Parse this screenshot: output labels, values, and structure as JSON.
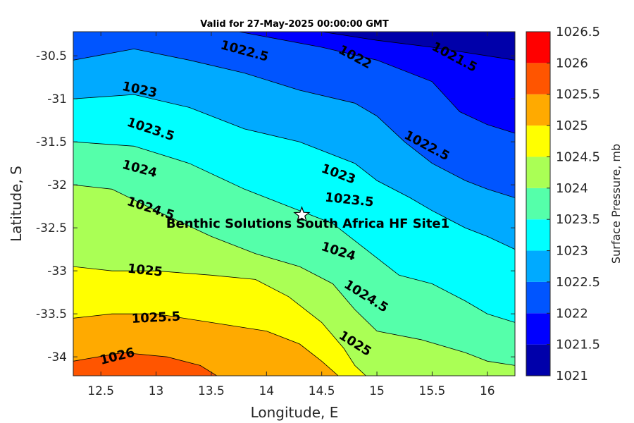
{
  "title": "Valid for 27-May-2025 00:00:00 GMT",
  "chart_data": {
    "type": "contour",
    "xlabel": "Longitude, E",
    "ylabel": "Latitude, S",
    "xlim": [
      12.25,
      16.25
    ],
    "ylim": [
      -34.22,
      -30.22
    ],
    "x_ticks": [
      {
        "value": 12.5,
        "label": "12.5"
      },
      {
        "value": 13,
        "label": "13"
      },
      {
        "value": 13.5,
        "label": "13.5"
      },
      {
        "value": 14,
        "label": "14"
      },
      {
        "value": 14.5,
        "label": "14.5"
      },
      {
        "value": 15,
        "label": "15"
      },
      {
        "value": 15.5,
        "label": "15.5"
      },
      {
        "value": 16,
        "label": "16"
      }
    ],
    "y_ticks": [
      {
        "value": -30.5,
        "label": "-30.5"
      },
      {
        "value": -31,
        "label": "-31"
      },
      {
        "value": -31.5,
        "label": "-31.5"
      },
      {
        "value": -32,
        "label": "-32"
      },
      {
        "value": -32.5,
        "label": "-32.5"
      },
      {
        "value": -33,
        "label": "-33"
      },
      {
        "value": -33.5,
        "label": "-33.5"
      },
      {
        "value": -34,
        "label": "-34"
      }
    ],
    "colorbar": {
      "title": "Surface Pressure, mb",
      "range": [
        1021,
        1026.5
      ],
      "levels": [
        {
          "value": 1021,
          "label": "1021",
          "color": "#0000aa"
        },
        {
          "value": 1021.5,
          "label": "1021.5",
          "color": "#0000ff"
        },
        {
          "value": 1022,
          "label": "1022",
          "color": "#0055ff"
        },
        {
          "value": 1022.5,
          "label": "1022.5",
          "color": "#00aaff"
        },
        {
          "value": 1023,
          "label": "1023",
          "color": "#00ffff"
        },
        {
          "value": 1023.5,
          "label": "1023.5",
          "color": "#55ffaa"
        },
        {
          "value": 1024,
          "label": "1024",
          "color": "#aaff55"
        },
        {
          "value": 1024.5,
          "label": "1024.5",
          "color": "#ffff00"
        },
        {
          "value": 1025,
          "label": "1025",
          "color": "#ffaa00"
        },
        {
          "value": 1025.5,
          "label": "1025.5",
          "color": "#ff5500"
        },
        {
          "value": 1026,
          "label": "1026",
          "color": "#ff0000"
        },
        {
          "value": 1026.5,
          "label": "1026.5",
          "color": "#aa0000"
        }
      ]
    },
    "isobars": [
      {
        "value": 1021.5,
        "points": [
          [
            14.5,
            -30.22
          ],
          [
            15.0,
            -30.32
          ],
          [
            15.5,
            -30.4
          ],
          [
            16.25,
            -30.55
          ]
        ]
      },
      {
        "value": 1022,
        "points": [
          [
            13.75,
            -30.22
          ],
          [
            14.5,
            -30.4
          ],
          [
            15.0,
            -30.55
          ],
          [
            15.5,
            -30.8
          ],
          [
            15.75,
            -31.15
          ],
          [
            16.0,
            -31.3
          ],
          [
            16.25,
            -31.4
          ]
        ]
      },
      {
        "value": 1022.5,
        "points": [
          [
            12.25,
            -30.55
          ],
          [
            12.8,
            -30.42
          ],
          [
            13.3,
            -30.55
          ],
          [
            13.8,
            -30.7
          ],
          [
            14.3,
            -30.9
          ],
          [
            14.8,
            -31.05
          ],
          [
            15.0,
            -31.2
          ],
          [
            15.25,
            -31.5
          ],
          [
            15.5,
            -31.75
          ],
          [
            15.8,
            -31.95
          ],
          [
            16.0,
            -32.05
          ],
          [
            16.25,
            -32.15
          ]
        ]
      },
      {
        "value": 1023,
        "points": [
          [
            12.25,
            -31.0
          ],
          [
            12.8,
            -30.95
          ],
          [
            13.3,
            -31.1
          ],
          [
            13.8,
            -31.35
          ],
          [
            14.3,
            -31.5
          ],
          [
            14.8,
            -31.75
          ],
          [
            15.0,
            -31.95
          ],
          [
            15.3,
            -32.15
          ],
          [
            15.5,
            -32.3
          ],
          [
            15.8,
            -32.5
          ],
          [
            16.0,
            -32.6
          ],
          [
            16.25,
            -32.75
          ]
        ]
      },
      {
        "value": 1023.5,
        "points": [
          [
            12.25,
            -31.5
          ],
          [
            12.8,
            -31.55
          ],
          [
            13.3,
            -31.75
          ],
          [
            13.8,
            -32.05
          ],
          [
            14.2,
            -32.25
          ],
          [
            14.6,
            -32.45
          ],
          [
            14.9,
            -32.75
          ],
          [
            15.2,
            -33.05
          ],
          [
            15.5,
            -33.15
          ],
          [
            15.8,
            -33.35
          ],
          [
            16.0,
            -33.5
          ],
          [
            16.25,
            -33.6
          ]
        ]
      },
      {
        "value": 1024,
        "points": [
          [
            12.25,
            -32.0
          ],
          [
            12.6,
            -32.05
          ],
          [
            13.0,
            -32.3
          ],
          [
            13.5,
            -32.6
          ],
          [
            13.9,
            -32.8
          ],
          [
            14.3,
            -32.95
          ],
          [
            14.6,
            -33.15
          ],
          [
            14.8,
            -33.45
          ],
          [
            15.0,
            -33.7
          ],
          [
            15.4,
            -33.8
          ],
          [
            15.8,
            -33.95
          ],
          [
            16.0,
            -34.05
          ],
          [
            16.25,
            -34.1
          ]
        ]
      },
      {
        "value": 1024.5,
        "points": [
          [
            12.25,
            -32.95
          ],
          [
            12.6,
            -33.0
          ],
          [
            13.0,
            -33.0
          ],
          [
            13.5,
            -33.05
          ],
          [
            13.9,
            -33.1
          ],
          [
            14.2,
            -33.3
          ],
          [
            14.5,
            -33.6
          ],
          [
            14.7,
            -33.9
          ],
          [
            14.8,
            -34.1
          ],
          [
            14.9,
            -34.22
          ]
        ]
      },
      {
        "value": 1025,
        "points": [
          [
            12.25,
            -33.55
          ],
          [
            12.6,
            -33.5
          ],
          [
            13.0,
            -33.5
          ],
          [
            13.5,
            -33.6
          ],
          [
            14.0,
            -33.7
          ],
          [
            14.3,
            -33.85
          ],
          [
            14.5,
            -34.05
          ],
          [
            14.65,
            -34.22
          ]
        ]
      },
      {
        "value": 1025.5,
        "points": [
          [
            12.25,
            -34.05
          ],
          [
            12.7,
            -33.95
          ],
          [
            13.1,
            -34.0
          ],
          [
            13.4,
            -34.1
          ],
          [
            13.55,
            -34.22
          ]
        ]
      },
      {
        "value": 1026,
        "points": [
          [
            12.25,
            -34.4
          ],
          [
            12.25,
            -34.4
          ]
        ]
      }
    ],
    "contour_labels": [
      {
        "text": "1022.5",
        "x": 13.8,
        "y": -30.45,
        "angle": 15
      },
      {
        "text": "1022",
        "x": 14.8,
        "y": -30.52,
        "angle": 28
      },
      {
        "text": "1021.5",
        "x": 15.7,
        "y": -30.52,
        "angle": 28
      },
      {
        "text": "1023",
        "x": 12.85,
        "y": -30.9,
        "angle": 12
      },
      {
        "text": "1023.5",
        "x": 12.95,
        "y": -31.36,
        "angle": 18
      },
      {
        "text": "1022.5",
        "x": 15.45,
        "y": -31.55,
        "angle": 28
      },
      {
        "text": "1024",
        "x": 12.85,
        "y": -31.82,
        "angle": 15
      },
      {
        "text": "1023",
        "x": 14.65,
        "y": -31.88,
        "angle": 20
      },
      {
        "text": "1024.5",
        "x": 12.95,
        "y": -32.28,
        "angle": 18
      },
      {
        "text": "1023.5",
        "x": 14.75,
        "y": -32.18,
        "angle": 6
      },
      {
        "text": "1024",
        "x": 14.65,
        "y": -32.78,
        "angle": 18
      },
      {
        "text": "1025",
        "x": 12.9,
        "y": -33.0,
        "angle": 6
      },
      {
        "text": "1024.5",
        "x": 14.9,
        "y": -33.3,
        "angle": 32
      },
      {
        "text": "1025.5",
        "x": 13.0,
        "y": -33.55,
        "angle": -3
      },
      {
        "text": "1025",
        "x": 14.8,
        "y": -33.85,
        "angle": 32
      },
      {
        "text": "1026",
        "x": 12.65,
        "y": -34.0,
        "angle": -14
      }
    ],
    "site": {
      "label": "Benthic Solutions South Africa HF Site1",
      "x": 14.32,
      "y": -32.35,
      "marker": "star"
    }
  }
}
